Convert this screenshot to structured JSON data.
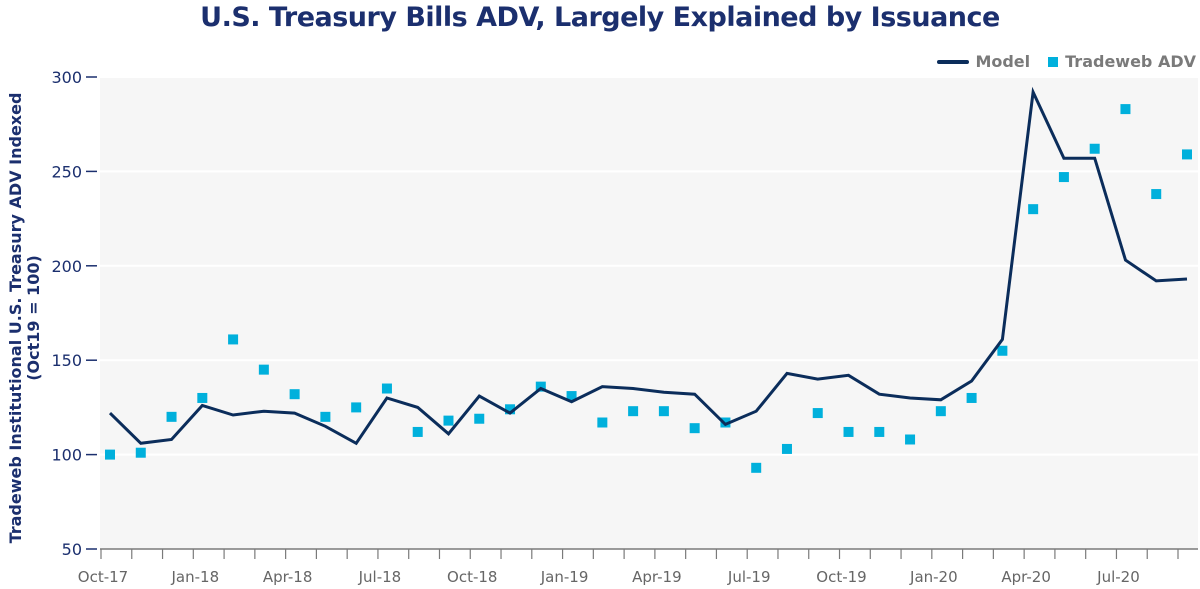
{
  "chart_data": {
    "type": "line",
    "title": "U.S. Treasury Bills ADV, Largely Explained by Issuance",
    "xlabel": "",
    "ylabel": "Tradeweb Institutional U.S. Treasury ADV Indexed",
    "ylabel_sub": "(Oct19 = 100)",
    "ylim": [
      50,
      300
    ],
    "yticks": [
      50,
      100,
      150,
      200,
      250,
      300
    ],
    "xtick_labels": [
      "Oct-17",
      "Jan-18",
      "Apr-18",
      "Jul-18",
      "Oct-18",
      "Jan-19",
      "Apr-19",
      "Jul-19",
      "Oct-19",
      "Jan-20",
      "Apr-20",
      "Jul-20"
    ],
    "grid": "horizontal",
    "legend_position": "top-right",
    "x": [
      "Oct-17",
      "Nov-17",
      "Dec-17",
      "Jan-18",
      "Feb-18",
      "Mar-18",
      "Apr-18",
      "May-18",
      "Jun-18",
      "Jul-18",
      "Aug-18",
      "Sep-18",
      "Oct-18",
      "Nov-18",
      "Dec-18",
      "Jan-19",
      "Feb-19",
      "Mar-19",
      "Apr-19",
      "May-19",
      "Jun-19",
      "Jul-19",
      "Aug-19",
      "Sep-19",
      "Oct-19",
      "Nov-19",
      "Dec-19",
      "Jan-20",
      "Feb-20",
      "Mar-20",
      "Apr-20",
      "May-20",
      "Jun-20",
      "Jul-20",
      "Aug-20",
      "Sep-20"
    ],
    "series": [
      {
        "name": "Model",
        "type": "line",
        "color": "#0b2d5b",
        "values": [
          122,
          106,
          108,
          126,
          121,
          123,
          122,
          115,
          106,
          130,
          125,
          111,
          131,
          122,
          135,
          128,
          136,
          135,
          133,
          132,
          116,
          123,
          143,
          140,
          142,
          132,
          130,
          129,
          139,
          161,
          292,
          257,
          257,
          203,
          192,
          193
        ]
      },
      {
        "name": "Tradeweb ADV",
        "type": "scatter",
        "marker": "square",
        "color": "#00b0dc",
        "values": [
          100,
          101,
          120,
          130,
          161,
          145,
          132,
          120,
          125,
          135,
          112,
          118,
          119,
          124,
          136,
          131,
          117,
          123,
          123,
          114,
          117,
          93,
          103,
          122,
          112,
          112,
          108,
          123,
          130,
          155,
          230,
          247,
          262,
          283,
          238,
          259
        ]
      }
    ]
  }
}
